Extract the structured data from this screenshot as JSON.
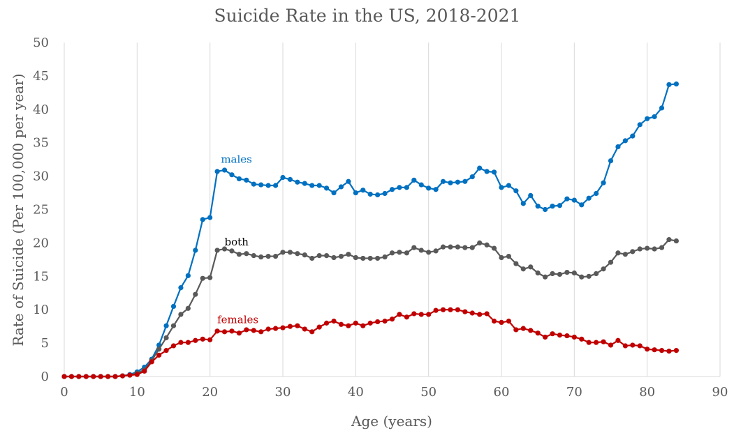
{
  "chart_data": {
    "type": "line",
    "title": "Suicide Rate in the US, 2018-2021",
    "xlabel": "Age (years)",
    "ylabel": "Rate of Suicide (Per 100,000 per year)",
    "xlim": [
      0,
      90
    ],
    "ylim": [
      0,
      50
    ],
    "xticks": [
      0,
      10,
      20,
      30,
      40,
      50,
      60,
      70,
      80,
      90
    ],
    "yticks": [
      0,
      5,
      10,
      15,
      20,
      25,
      30,
      35,
      40,
      45,
      50
    ],
    "grid": "vertical",
    "legend": "none",
    "x": [
      0,
      1,
      2,
      3,
      4,
      5,
      6,
      7,
      8,
      9,
      10,
      11,
      12,
      13,
      14,
      15,
      16,
      17,
      18,
      19,
      20,
      21,
      22,
      23,
      24,
      25,
      26,
      27,
      28,
      29,
      30,
      31,
      32,
      33,
      34,
      35,
      36,
      37,
      38,
      39,
      40,
      41,
      42,
      43,
      44,
      45,
      46,
      47,
      48,
      49,
      50,
      51,
      52,
      53,
      54,
      55,
      56,
      57,
      58,
      59,
      60,
      61,
      62,
      63,
      64,
      65,
      66,
      67,
      68,
      69,
      70,
      71,
      72,
      73,
      74,
      75,
      76,
      77,
      78,
      79,
      80,
      81,
      82,
      83,
      84
    ],
    "series": [
      {
        "name": "males",
        "color": "#0070C0",
        "values": [
          0,
          0,
          0,
          0,
          0,
          0,
          0,
          0,
          0.1,
          0.3,
          0.7,
          1.4,
          2.6,
          4.7,
          7.6,
          10.5,
          13.3,
          15.1,
          18.9,
          23.5,
          23.8,
          30.7,
          30.9,
          30.2,
          29.6,
          29.4,
          28.8,
          28.7,
          28.6,
          28.6,
          29.8,
          29.5,
          29.1,
          28.9,
          28.6,
          28.6,
          28.2,
          27.5,
          28.4,
          29.2,
          27.5,
          27.9,
          27.3,
          27.2,
          27.4,
          28.0,
          28.3,
          28.3,
          29.4,
          28.7,
          28.2,
          28.0,
          29.2,
          29.0,
          29.1,
          29.2,
          29.9,
          31.2,
          30.7,
          30.6,
          28.3,
          28.6,
          27.8,
          25.9,
          27.1,
          25.5,
          25.0,
          25.5,
          25.6,
          26.6,
          26.4,
          25.7,
          26.7,
          27.4,
          29.0,
          32.3,
          34.4,
          35.3,
          36.0,
          37.7,
          38.6,
          38.9,
          40.2,
          43.7,
          43.8
        ]
      },
      {
        "name": "both",
        "color": "#595959",
        "values": [
          0,
          0,
          0,
          0,
          0,
          0,
          0,
          0,
          0.1,
          0.2,
          0.5,
          1.0,
          2.4,
          4.1,
          5.8,
          7.6,
          9.3,
          10.2,
          12.3,
          14.7,
          14.8,
          18.9,
          19.1,
          18.8,
          18.3,
          18.4,
          18.1,
          17.9,
          18.0,
          18.0,
          18.6,
          18.6,
          18.4,
          18.2,
          17.7,
          18.1,
          18.1,
          17.8,
          18.0,
          18.3,
          17.8,
          17.7,
          17.7,
          17.7,
          17.9,
          18.5,
          18.6,
          18.5,
          19.3,
          18.9,
          18.6,
          18.8,
          19.4,
          19.4,
          19.4,
          19.3,
          19.3,
          20.0,
          19.7,
          19.2,
          17.8,
          18.0,
          16.9,
          16.1,
          16.4,
          15.5,
          14.9,
          15.4,
          15.3,
          15.6,
          15.5,
          14.9,
          15.0,
          15.4,
          16.1,
          17.1,
          18.5,
          18.3,
          18.7,
          19.1,
          19.2,
          19.1,
          19.3,
          20.5,
          20.3
        ]
      },
      {
        "name": "females",
        "color": "#C00000",
        "values": [
          0,
          0,
          0,
          0,
          0,
          0,
          0,
          0,
          0.1,
          0.2,
          0.3,
          0.8,
          2.2,
          3.2,
          3.9,
          4.6,
          5.1,
          5.1,
          5.4,
          5.6,
          5.5,
          6.8,
          6.7,
          6.8,
          6.5,
          7.0,
          6.9,
          6.7,
          7.1,
          7.2,
          7.3,
          7.5,
          7.6,
          7.1,
          6.7,
          7.4,
          8.0,
          8.3,
          7.8,
          7.6,
          8.0,
          7.6,
          8.0,
          8.2,
          8.3,
          8.6,
          9.3,
          8.9,
          9.4,
          9.3,
          9.3,
          9.9,
          10.0,
          10.0,
          10.0,
          9.7,
          9.5,
          9.3,
          9.4,
          8.3,
          8.1,
          8.3,
          7.0,
          7.2,
          6.9,
          6.5,
          5.9,
          6.4,
          6.2,
          6.1,
          5.9,
          5.6,
          5.1,
          5.1,
          5.2,
          4.7,
          5.4,
          4.6,
          4.7,
          4.6,
          4.1,
          4.0,
          3.9,
          3.8,
          3.9
        ]
      }
    ],
    "annotations": [
      {
        "text": "males",
        "x": 21.5,
        "y": 32.0,
        "color": "#0070C0"
      },
      {
        "text": "both",
        "x": 22.0,
        "y": 19.6,
        "color": "#000000"
      },
      {
        "text": "females",
        "x": 21.0,
        "y": 8.0,
        "color": "#C00000"
      }
    ]
  }
}
